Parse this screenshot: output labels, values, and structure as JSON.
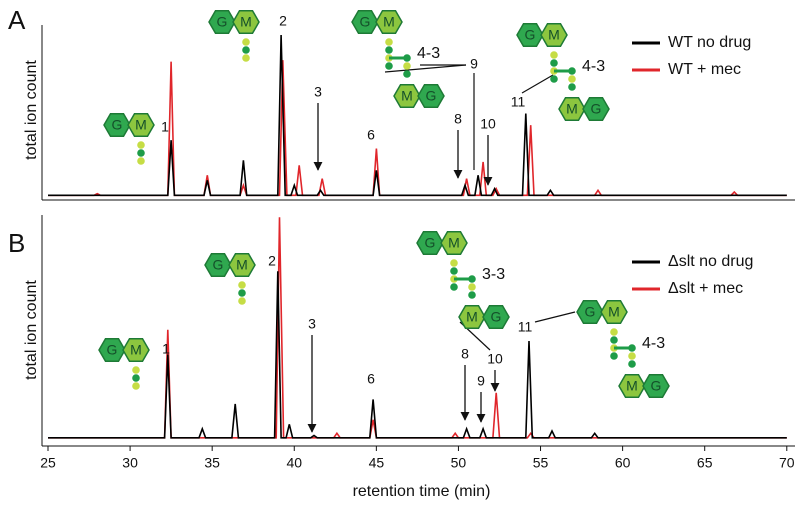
{
  "chart_data": [
    {
      "type": "line",
      "panel_label": "A",
      "ylabel": "total ion count",
      "xlim": [
        25,
        70.5
      ],
      "ylim": [
        0,
        100
      ],
      "legend": "upper right",
      "series": [
        {
          "name": "WT no drug",
          "color": "#000000",
          "x": [
            25,
            32.3,
            32.5,
            32.7,
            34.5,
            34.7,
            34.9,
            36.7,
            36.9,
            37.1,
            39.0,
            39.2,
            39.45,
            39.8,
            40.0,
            40.2,
            41.4,
            41.6,
            41.8,
            44.8,
            45.0,
            45.2,
            50.2,
            50.4,
            50.6,
            51.0,
            51.2,
            51.4,
            52.0,
            52.2,
            52.4,
            53.9,
            54.1,
            54.3,
            55.4,
            55.6,
            55.8,
            70
          ],
          "values": [
            1,
            1,
            34,
            1,
            1,
            10,
            1,
            1,
            22,
            1,
            1,
            97,
            1,
            1,
            7,
            1,
            1,
            4,
            1,
            1,
            16,
            1,
            1,
            7,
            1,
            1,
            13,
            1,
            1,
            5,
            1,
            1,
            50,
            1,
            1,
            4,
            1,
            1
          ]
        },
        {
          "name": "WT + mec",
          "color": "#e0262b",
          "x": [
            25,
            27.8,
            28,
            28.2,
            32.3,
            32.5,
            32.7,
            34.5,
            34.7,
            34.9,
            36.7,
            36.9,
            37.1,
            39.1,
            39.3,
            39.55,
            40.1,
            40.3,
            40.5,
            41.5,
            41.7,
            41.9,
            44.8,
            45.0,
            45.2,
            50.3,
            50.5,
            50.7,
            51.3,
            51.5,
            51.7,
            52.1,
            52.3,
            52.5,
            54.2,
            54.4,
            54.6,
            58.3,
            58.5,
            58.7,
            66.6,
            66.8,
            67.0,
            70
          ],
          "values": [
            1,
            1,
            2,
            1,
            1,
            81,
            1,
            1,
            13,
            1,
            1,
            7,
            1,
            1,
            82,
            1,
            1,
            19,
            1,
            1,
            11,
            1,
            1,
            29,
            1,
            1,
            11,
            1,
            1,
            21,
            1,
            1,
            5,
            1,
            1,
            43,
            1,
            1,
            4,
            1,
            1,
            3,
            1,
            1
          ]
        }
      ],
      "peak_labels": [
        "1",
        "2",
        "3",
        "6",
        "8",
        "9",
        "10",
        "11"
      ],
      "glycans": [
        {
          "top": [
            "G",
            "M"
          ]
        },
        {
          "top": [
            "G",
            "M"
          ]
        },
        {
          "top": [
            "G",
            "M"
          ],
          "bond": "4-3",
          "bottom": [
            "M",
            "G"
          ]
        },
        {
          "top": [
            "G",
            "M"
          ],
          "bond": "4-3",
          "bottom": [
            "M",
            "G"
          ]
        }
      ]
    },
    {
      "type": "line",
      "panel_label": "B",
      "ylabel": "total ion count",
      "xlabel": "retention time (min)",
      "xlim": [
        25,
        70.5
      ],
      "xticks": [
        25,
        30,
        35,
        40,
        45,
        50,
        55,
        60,
        65,
        70
      ],
      "ylim": [
        0,
        100
      ],
      "legend": "upper right",
      "series": [
        {
          "name": "Δslt no drug",
          "color": "#000000",
          "x": [
            25,
            32.1,
            32.3,
            32.5,
            34.2,
            34.4,
            34.6,
            36.2,
            36.4,
            36.6,
            38.8,
            39.0,
            39.2,
            39.5,
            39.7,
            39.9,
            41.0,
            41.2,
            41.4,
            44.6,
            44.8,
            45.0,
            50.3,
            50.5,
            50.7,
            51.3,
            51.5,
            51.7,
            54.1,
            54.3,
            54.5,
            55.5,
            55.7,
            55.9,
            58.1,
            58.3,
            58.5,
            70
          ],
          "values": [
            1,
            1,
            38,
            1,
            1,
            5,
            1,
            1,
            16,
            1,
            1,
            75,
            1,
            1,
            7,
            1,
            1,
            2,
            1,
            1,
            18,
            1,
            1,
            5,
            1,
            1,
            5,
            1,
            1,
            44,
            1,
            1,
            4,
            1,
            1,
            3,
            1,
            1
          ]
        },
        {
          "name": "Δslt + mec",
          "color": "#e0262b",
          "x": [
            25,
            32.1,
            32.3,
            32.5,
            38.9,
            39.1,
            39.35,
            42.4,
            42.6,
            42.8,
            44.6,
            44.8,
            45.0,
            49.6,
            49.8,
            50.0,
            52.1,
            52.3,
            52.5,
            54.2,
            54.4,
            54.6,
            70
          ],
          "values": [
            1,
            1,
            49,
            1,
            1,
            99,
            1,
            1,
            3,
            1,
            1,
            9,
            1,
            1,
            3,
            1,
            1,
            21,
            1,
            1,
            3,
            1,
            1
          ]
        }
      ],
      "peak_labels": [
        "1",
        "2",
        "3",
        "6",
        "8",
        "9",
        "10",
        "11"
      ],
      "glycans": [
        {
          "top": [
            "G",
            "M"
          ]
        },
        {
          "top": [
            "G",
            "M"
          ]
        },
        {
          "top": [
            "G",
            "M"
          ],
          "bond": "3-3",
          "bottom": [
            "M",
            "G"
          ]
        },
        {
          "top": [
            "G",
            "M"
          ],
          "bond": "4-3",
          "bottom": [
            "M",
            "G"
          ]
        }
      ]
    }
  ]
}
